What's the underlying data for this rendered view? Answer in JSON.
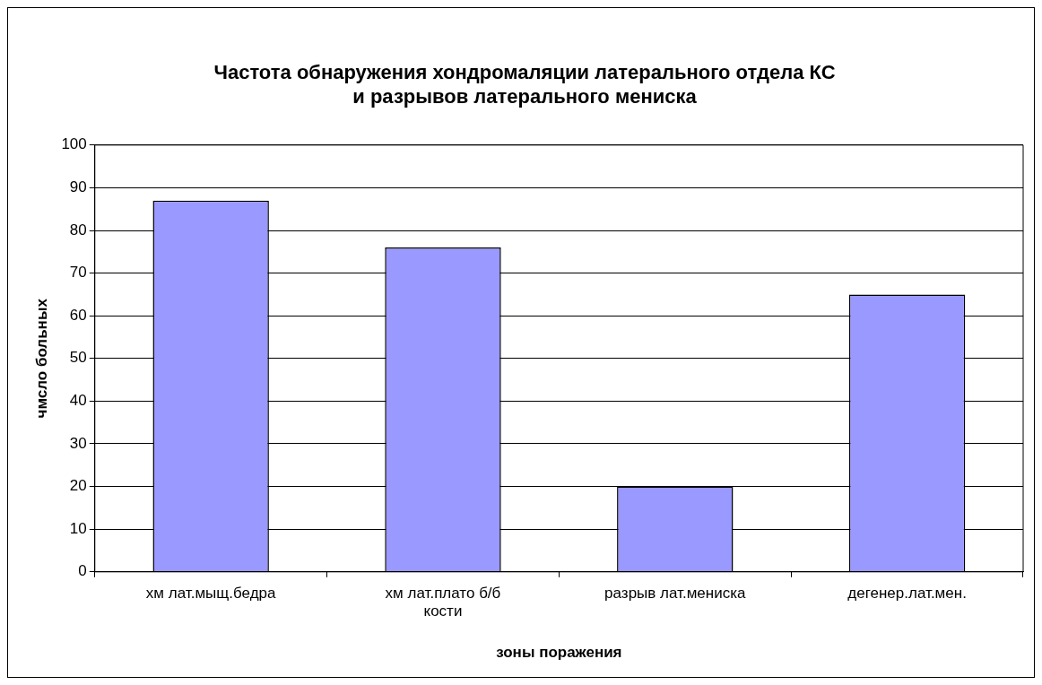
{
  "chart_data": {
    "type": "bar",
    "title": "Частота обнаружения хондромаляции латерального отдела КС и разрывов латерального мениска",
    "xlabel": "зоны поражения",
    "ylabel": "чмсло больных",
    "categories": [
      "хм лат.мыщ.бедра",
      "хм лат.плато б/б кости",
      "разрыв лат.мениска",
      "дегенер.лат.мен."
    ],
    "values": [
      87,
      76,
      20,
      65
    ],
    "color": "#9999ff",
    "ylim": [
      0,
      100
    ],
    "yticks": [
      0,
      10,
      20,
      30,
      40,
      50,
      60,
      70,
      80,
      90,
      100
    ],
    "grid": "y",
    "legend": false
  }
}
